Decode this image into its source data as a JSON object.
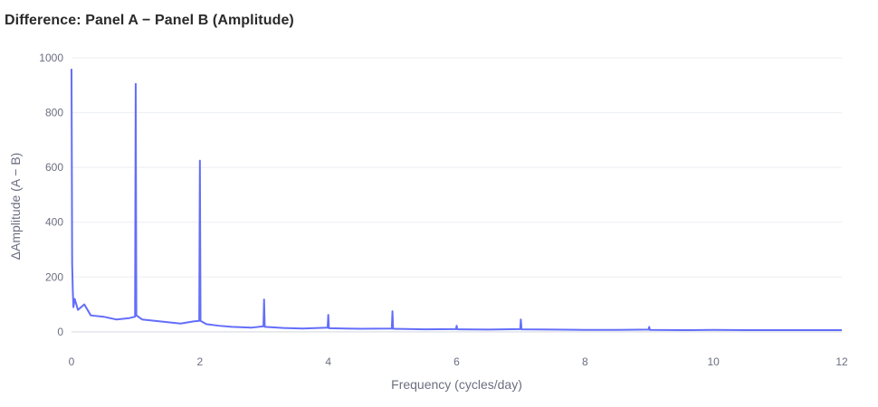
{
  "chart_data": {
    "type": "line",
    "title": "Difference: Panel A − Panel B (Amplitude)",
    "xlabel": "Frequency (cycles/day)",
    "ylabel": "ΔAmplitude (A − B)",
    "xlim": [
      0,
      12
    ],
    "ylim": [
      -50,
      1000
    ],
    "xticks": [
      0,
      2,
      4,
      6,
      8,
      10,
      12
    ],
    "yticks": [
      0,
      200,
      400,
      600,
      800,
      1000
    ],
    "grid": true,
    "line_color": "#636efa",
    "series": [
      {
        "x": [
          0,
          0.01,
          0.02,
          0.03,
          0.05,
          0.1,
          0.2,
          0.3,
          0.5,
          0.7,
          0.9,
          0.99,
          1.0,
          1.01,
          1.1,
          1.3,
          1.5,
          1.7,
          1.9,
          1.99,
          2.0,
          2.01,
          2.1,
          2.3,
          2.5,
          2.8,
          2.99,
          3.0,
          3.01,
          3.3,
          3.6,
          3.99,
          4.0,
          4.01,
          4.5,
          4.99,
          5.0,
          5.01,
          5.5,
          5.99,
          6.0,
          6.01,
          6.5,
          6.99,
          7.0,
          7.01,
          7.5,
          8.0,
          8.5,
          8.99,
          9.0,
          9.01,
          9.5,
          10.0,
          10.5,
          11.0,
          11.5,
          12.0
        ],
        "y": [
          960,
          250,
          150,
          90,
          120,
          80,
          100,
          60,
          55,
          45,
          50,
          55,
          905,
          60,
          45,
          40,
          35,
          30,
          38,
          40,
          625,
          40,
          28,
          22,
          18,
          15,
          20,
          118,
          18,
          14,
          12,
          15,
          62,
          13,
          11,
          12,
          75,
          11,
          9,
          10,
          22,
          9,
          8,
          10,
          45,
          9,
          8,
          7,
          7,
          8,
          18,
          7,
          6,
          7,
          6,
          6,
          6,
          6
        ]
      }
    ]
  }
}
